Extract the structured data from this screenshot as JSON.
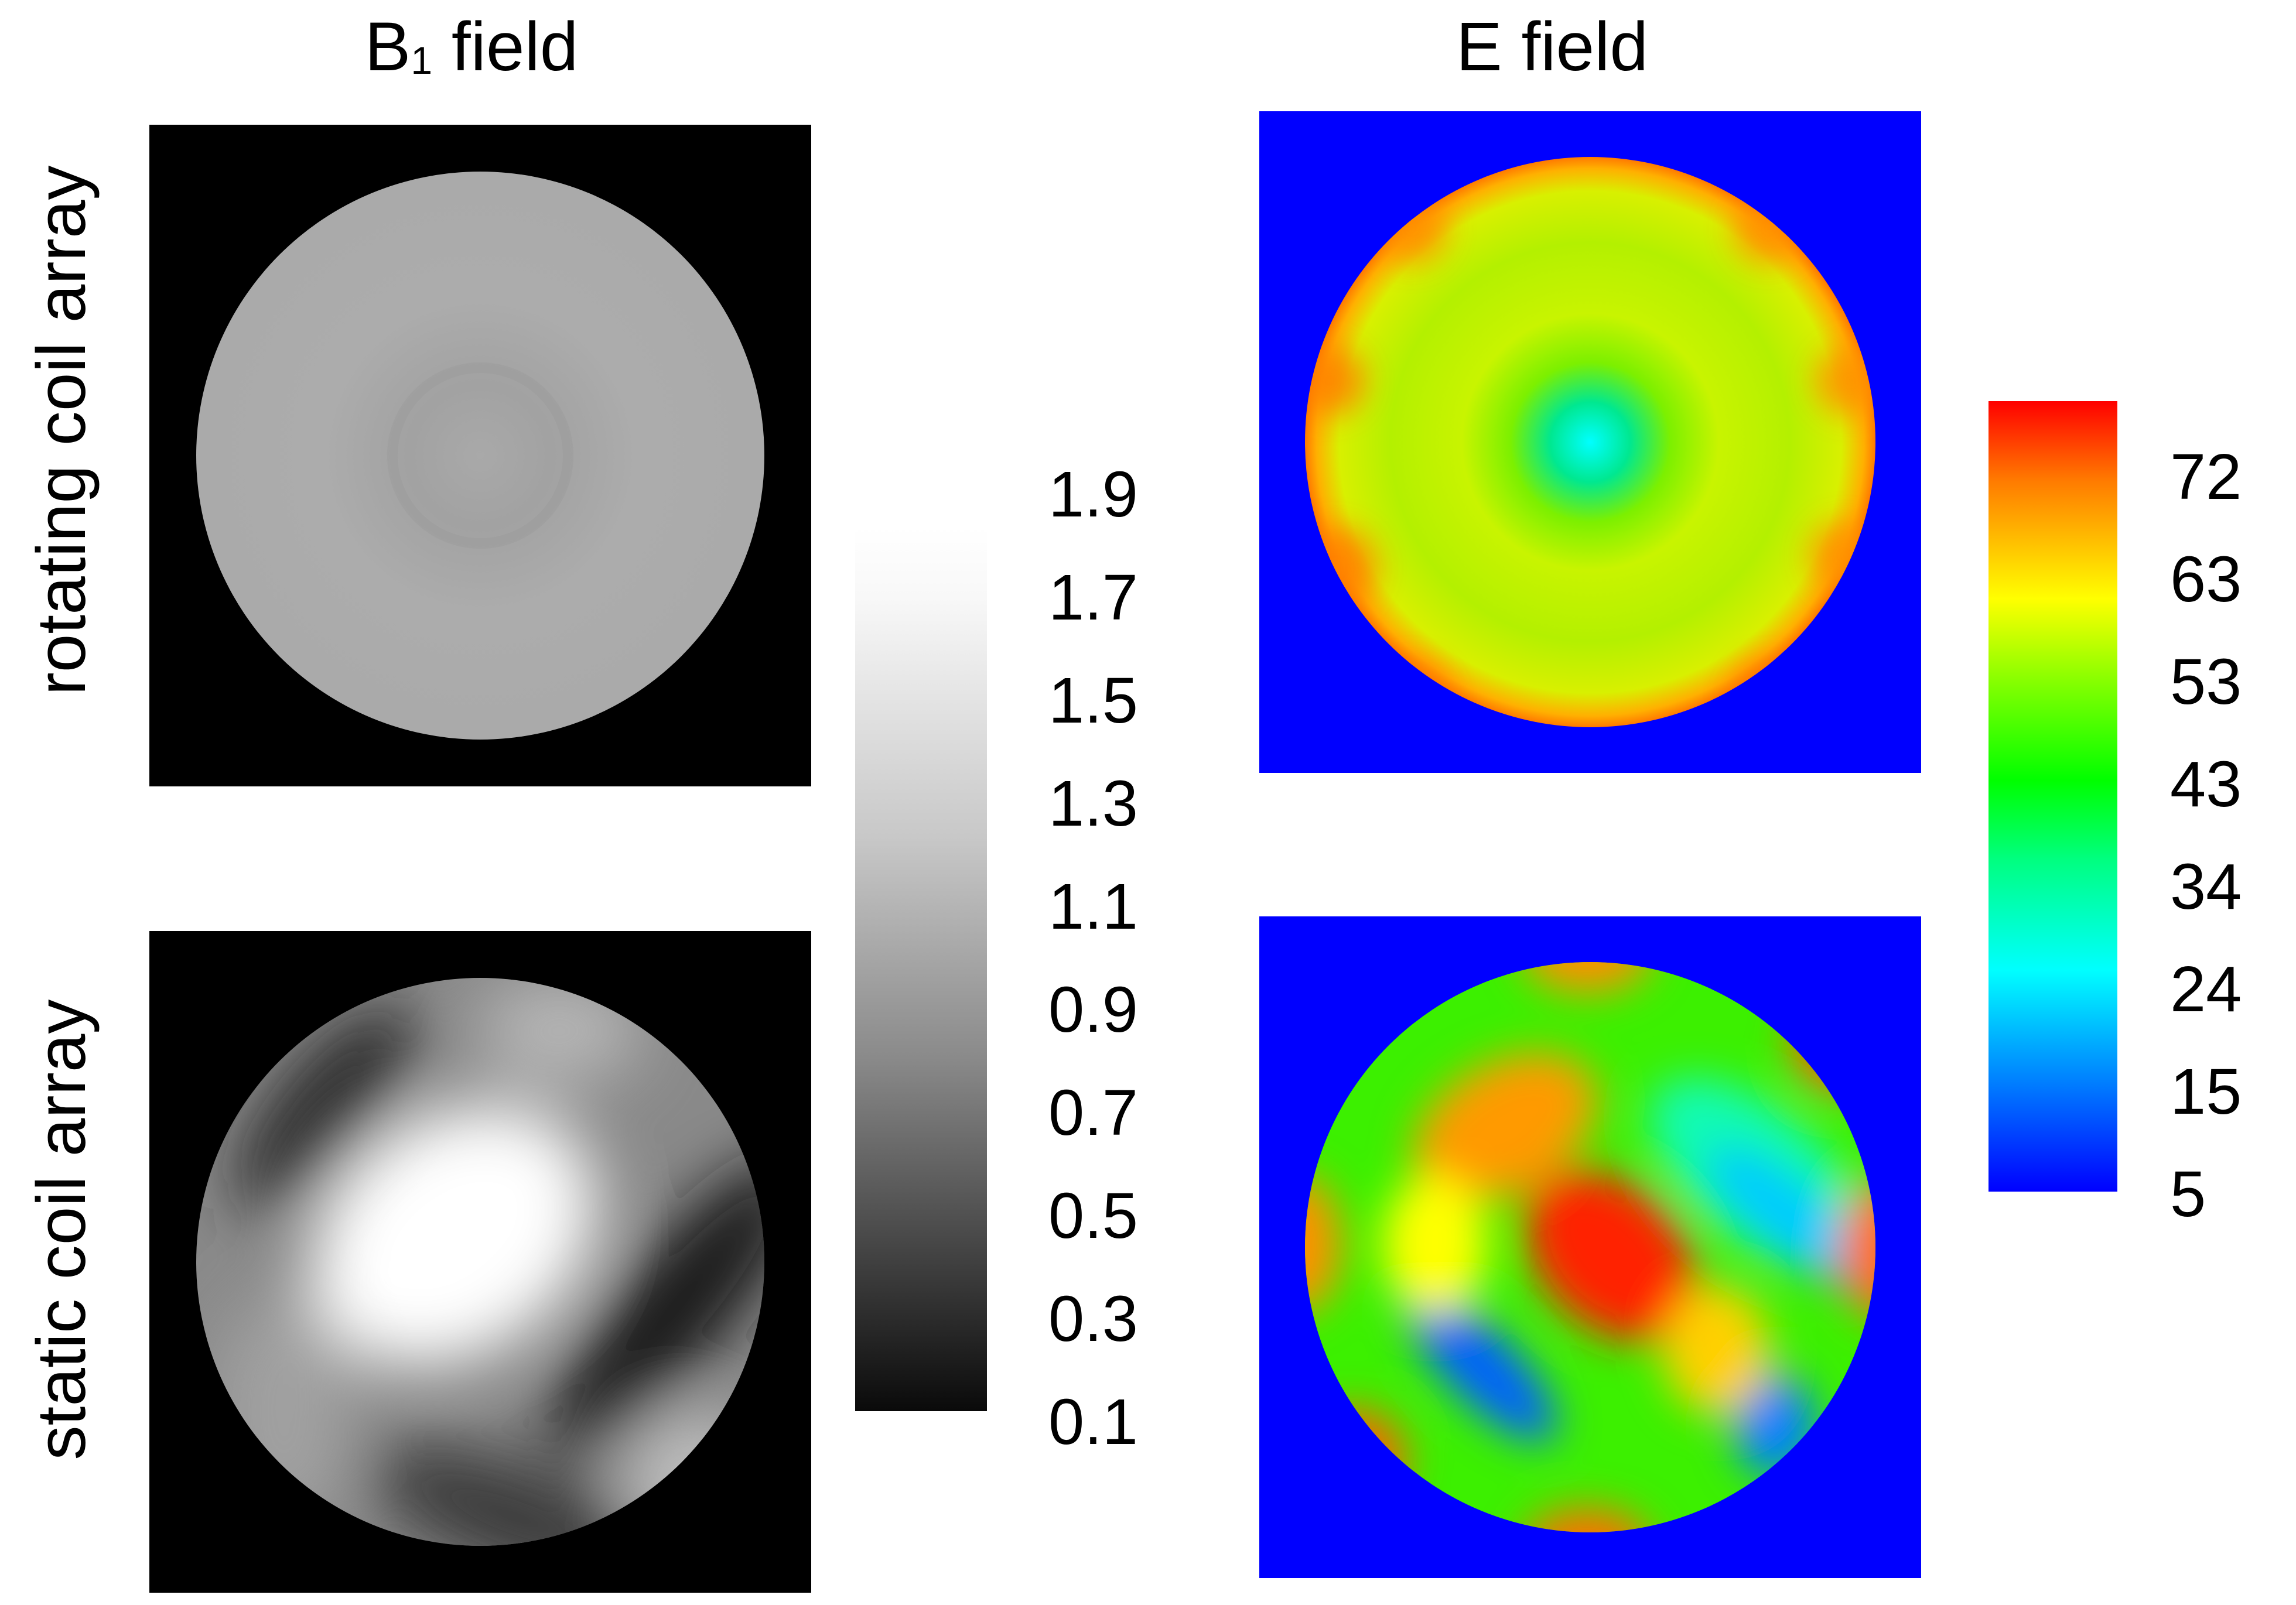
{
  "titles": {
    "b1_main": "B",
    "b1_sub": "1",
    "b1_rest": " field",
    "e": "E field"
  },
  "row_labels": {
    "top": "rotating coil array",
    "bottom": "static coil array"
  },
  "b1_colorbar": {
    "ticks": [
      "1.9",
      "1.7",
      "1.5",
      "1.3",
      "1.1",
      "0.9",
      "0.7",
      "0.5",
      "0.3",
      "0.1"
    ],
    "colormap": "gray",
    "colors": [
      "#ffffff",
      "#000000"
    ]
  },
  "e_colorbar": {
    "ticks": [
      "72",
      "63",
      "53",
      "43",
      "34",
      "24",
      "15",
      "5"
    ],
    "colormap": "jet",
    "colors": [
      "#ff0000",
      "#ffff00",
      "#00ff00",
      "#00ffff",
      "#0000ff"
    ]
  },
  "panel_colors": {
    "b1_background": "#000000",
    "e_background": "#0000ff"
  }
}
